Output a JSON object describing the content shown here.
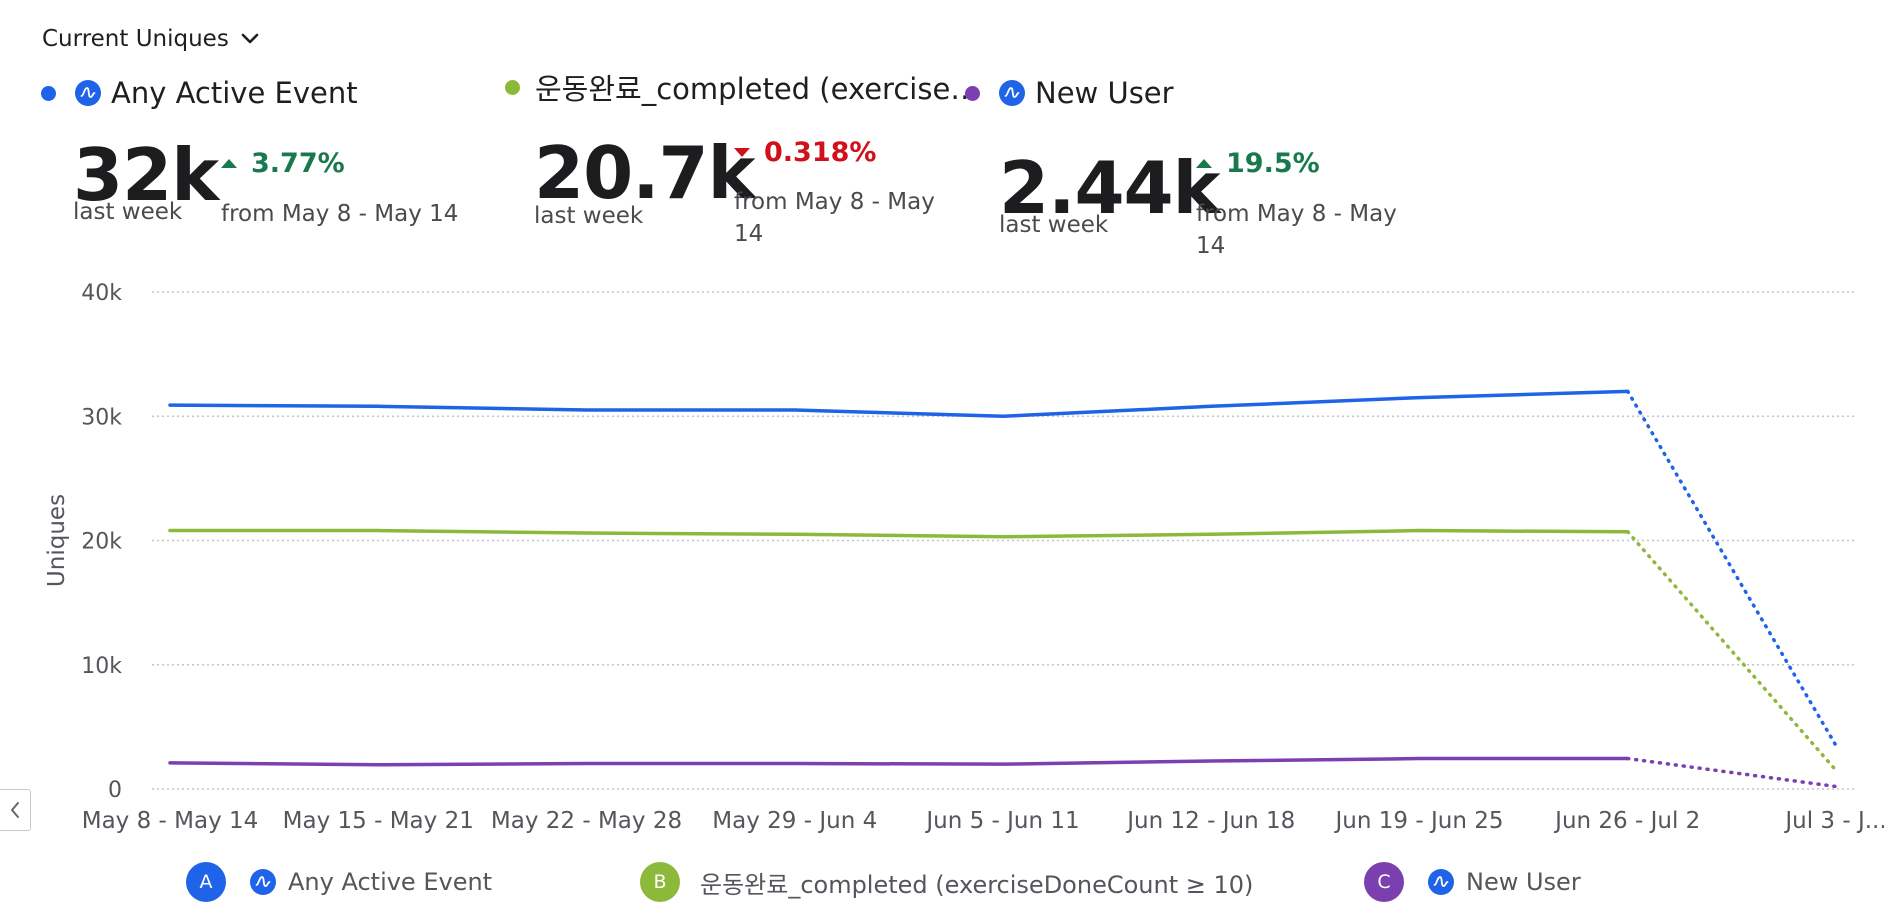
{
  "metric_selector": {
    "label": "Current Uniques",
    "icon": "chevron-down-icon"
  },
  "kpis": [
    {
      "name": "Any Active Event",
      "color": "#1f63e8",
      "show_icon": true,
      "value": "32k",
      "period": "last week",
      "direction": "up",
      "change": "3.77%",
      "comparison_lines": [
        "from May 8 - May 14"
      ]
    },
    {
      "name": "운동완료_completed (exercise…",
      "color": "#8db93a",
      "show_icon": false,
      "value": "20.7k",
      "period": "last week",
      "direction": "down",
      "change": "0.318%",
      "comparison_lines": [
        "from May 8 - May",
        "14"
      ]
    },
    {
      "name": "New User",
      "color": "#7b3fb0",
      "show_icon": true,
      "value": "2.44k",
      "period": "last week",
      "direction": "up",
      "change": "19.5%",
      "comparison_lines": [
        "from May 8 - May",
        "14"
      ]
    }
  ],
  "chart_data": {
    "type": "line",
    "ylabel": "Uniques",
    "ylim": [
      0,
      40000
    ],
    "yticks": [
      0,
      10000,
      20000,
      30000,
      40000
    ],
    "ytick_labels": [
      "0",
      "10k",
      "20k",
      "30k",
      "40k"
    ],
    "categories": [
      "May 8 - May 14",
      "May 15 - May 21",
      "May 22 - May 28",
      "May 29 - Jun 4",
      "Jun 5 - Jun 11",
      "Jun 12 - Jun 18",
      "Jun 19 - Jun 25",
      "Jun 26 - Jul 2",
      "Jul 3 - J..."
    ],
    "incomplete_from_index": 7,
    "grid": true,
    "series": [
      {
        "name": "Any Active Event",
        "color": "#1f63e8",
        "values": [
          30900,
          30800,
          30500,
          30500,
          30000,
          30800,
          31500,
          32000,
          3500
        ]
      },
      {
        "name": "운동완료_completed (exerciseDoneCount ≥ 10)",
        "color": "#8db93a",
        "values": [
          20800,
          20800,
          20600,
          20500,
          20300,
          20500,
          20800,
          20700,
          1500
        ]
      },
      {
        "name": "New User",
        "color": "#7b3fb0",
        "values": [
          2100,
          1950,
          2050,
          2050,
          2000,
          2250,
          2450,
          2450,
          200
        ]
      }
    ]
  },
  "legend": [
    {
      "letter": "A",
      "color": "#1f63e8",
      "label": "Any Active Event",
      "show_icon": true
    },
    {
      "letter": "B",
      "color": "#8db93a",
      "label": "운동완료_completed (exerciseDoneCount ≥ 10)",
      "show_icon": false
    },
    {
      "letter": "C",
      "color": "#7b3fb0",
      "label": "New User",
      "show_icon": true
    }
  ],
  "nav": {
    "icon": "chevron-left-icon"
  }
}
